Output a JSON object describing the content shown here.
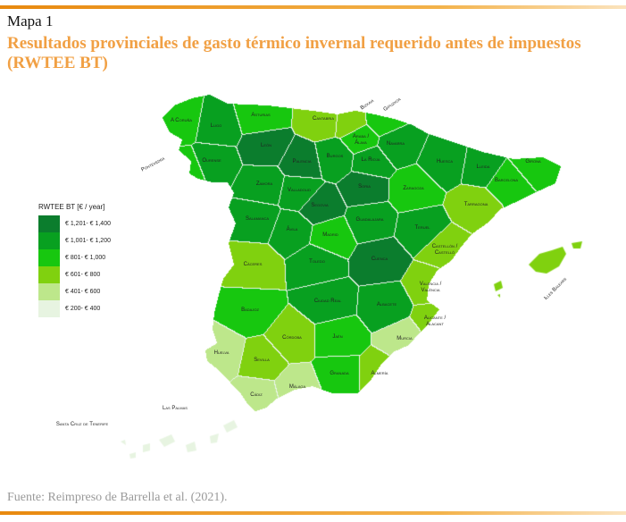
{
  "header": {
    "map_label": "Mapa 1",
    "title": "Resultados provinciales de gasto térmico invernal requerido antes de impuestos (RWTEE BT)"
  },
  "legend": {
    "title": "RWTEE BT [€ / year]",
    "classes": [
      {
        "label": "€ 1,201- € 1,400",
        "color": "#0b7d2d"
      },
      {
        "label": "€ 1,001- € 1,200",
        "color": "#08a020"
      },
      {
        "label": "€ 801- € 1,000",
        "color": "#17c70f"
      },
      {
        "label": "€ 601- € 800",
        "color": "#80d10f"
      },
      {
        "label": "€ 401- € 600",
        "color": "#bde78b"
      },
      {
        "label": "€ 200- € 400",
        "color": "#e7f4e1"
      }
    ]
  },
  "provinces": [
    {
      "name": "A Coruña",
      "class": 2
    },
    {
      "name": "Lugo",
      "class": 1
    },
    {
      "name": "Asturias",
      "class": 2
    },
    {
      "name": "Cantabria",
      "class": 3
    },
    {
      "name": "Bizkaia",
      "class": 3
    },
    {
      "name": "Gipuzkoa",
      "class": 2
    },
    {
      "name": "Araba / Álava",
      "class": 2
    },
    {
      "name": "Navarra",
      "class": 1
    },
    {
      "name": "León",
      "class": 0
    },
    {
      "name": "Palencia",
      "class": 0
    },
    {
      "name": "Burgos",
      "class": 1
    },
    {
      "name": "La Rioja",
      "class": 1
    },
    {
      "name": "Ourense",
      "class": 1
    },
    {
      "name": "Pontevedra",
      "class": 2
    },
    {
      "name": "Huesca",
      "class": 1
    },
    {
      "name": "Lleida",
      "class": 1
    },
    {
      "name": "Girona",
      "class": 2
    },
    {
      "name": "Barcelona",
      "class": 2
    },
    {
      "name": "Zamora",
      "class": 1
    },
    {
      "name": "Valladolid",
      "class": 1
    },
    {
      "name": "Soria",
      "class": 0
    },
    {
      "name": "Zaragoza",
      "class": 2
    },
    {
      "name": "Tarragona",
      "class": 3
    },
    {
      "name": "Segovia",
      "class": 0
    },
    {
      "name": "Salamanca",
      "class": 1
    },
    {
      "name": "Guadalajara",
      "class": 1
    },
    {
      "name": "Ávila",
      "class": 1
    },
    {
      "name": "Madrid",
      "class": 2
    },
    {
      "name": "Teruel",
      "class": 1
    },
    {
      "name": "Castellón / Castelló",
      "class": 3
    },
    {
      "name": "Cáceres",
      "class": 3
    },
    {
      "name": "Toledo",
      "class": 1
    },
    {
      "name": "Cuenca",
      "class": 0
    },
    {
      "name": "Valencia / València",
      "class": 3
    },
    {
      "name": "Ciudad Real",
      "class": 1
    },
    {
      "name": "Albacete",
      "class": 1
    },
    {
      "name": "Badajoz",
      "class": 2
    },
    {
      "name": "Alicante / Alacant",
      "class": 3
    },
    {
      "name": "Córdoba",
      "class": 3
    },
    {
      "name": "Jaén",
      "class": 2
    },
    {
      "name": "Murcia",
      "class": 4
    },
    {
      "name": "Huelva",
      "class": 4
    },
    {
      "name": "Sevilla",
      "class": 3
    },
    {
      "name": "Granada",
      "class": 2
    },
    {
      "name": "Almería",
      "class": 3
    },
    {
      "name": "Málaga",
      "class": 4
    },
    {
      "name": "Cádiz",
      "class": 4
    },
    {
      "name": "Illes Balears",
      "class": 3
    },
    {
      "name": "Las Palmas",
      "class": 5
    },
    {
      "name": "Santa Cruz de Tenerife",
      "class": 5
    }
  ],
  "source": "Fuente: Reimpreso de Barrella et al. (2021)."
}
